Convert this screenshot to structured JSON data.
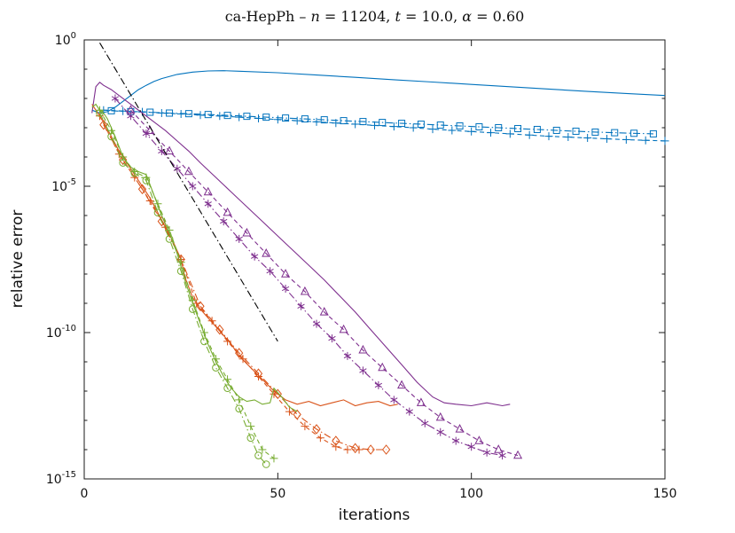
{
  "chart_data": {
    "type": "line",
    "title": "ca-HepPh – n = 11204, t = 10.0, α = 0.60",
    "title_segments": [
      {
        "text": "ca-HepPh – ",
        "italic": false
      },
      {
        "text": "n",
        "italic": true
      },
      {
        "text": " = 11204, ",
        "italic": false
      },
      {
        "text": "t",
        "italic": true
      },
      {
        "text": " = 10.0, ",
        "italic": false
      },
      {
        "text": "α",
        "italic": true
      },
      {
        "text": " = 0.60",
        "italic": false
      }
    ],
    "x_axis": {
      "label": "iterations",
      "range": [
        0,
        150
      ],
      "ticks": [
        0,
        50,
        100,
        150
      ],
      "scale": "linear"
    },
    "y_axis": {
      "label": "relative error",
      "scale": "log",
      "range_exponents": [
        -15,
        0
      ],
      "major_tick_exponents": [
        0,
        -5,
        -10,
        -15
      ],
      "minor_ticks_every_decade": true
    },
    "legend": {
      "shown": false
    },
    "grid": false,
    "colors": {
      "blue": "#0072BD",
      "orange": "#D95319",
      "green": "#77AC30",
      "purple": "#7E2F8E",
      "black": "#000000"
    },
    "series": [
      {
        "name": "blue-solid",
        "color": "#0072BD",
        "line": "solid",
        "marker": "none",
        "x": [
          2,
          4,
          6,
          8,
          10,
          12,
          14,
          16,
          18,
          20,
          24,
          28,
          32,
          36,
          40,
          50,
          60,
          70,
          80,
          90,
          100,
          110,
          120,
          130,
          140,
          150
        ],
        "log10y": [
          -2.4,
          -2.5,
          -2.45,
          -2.3,
          -2.1,
          -1.9,
          -1.7,
          -1.55,
          -1.42,
          -1.32,
          -1.18,
          -1.1,
          -1.06,
          -1.05,
          -1.07,
          -1.12,
          -1.2,
          -1.28,
          -1.36,
          -1.44,
          -1.52,
          -1.6,
          -1.68,
          -1.76,
          -1.83,
          -1.9
        ]
      },
      {
        "name": "blue-dashdot-square",
        "color": "#0072BD",
        "line": "dashdot",
        "marker": "square",
        "x": [
          7,
          12,
          17,
          22,
          27,
          32,
          37,
          42,
          47,
          52,
          57,
          62,
          67,
          72,
          77,
          82,
          87,
          92,
          97,
          102,
          107,
          112,
          117,
          122,
          127,
          132,
          137,
          142,
          147
        ],
        "log10y": [
          -2.42,
          -2.45,
          -2.47,
          -2.5,
          -2.52,
          -2.55,
          -2.58,
          -2.61,
          -2.64,
          -2.67,
          -2.7,
          -2.73,
          -2.76,
          -2.79,
          -2.82,
          -2.85,
          -2.88,
          -2.91,
          -2.94,
          -2.97,
          -3.0,
          -3.03,
          -3.06,
          -3.09,
          -3.12,
          -3.15,
          -3.17,
          -3.19,
          -3.21
        ]
      },
      {
        "name": "blue-dashed-plus",
        "color": "#0072BD",
        "line": "dashed",
        "marker": "plus",
        "x": [
          5,
          10,
          15,
          20,
          25,
          30,
          35,
          40,
          45,
          50,
          55,
          60,
          65,
          70,
          75,
          80,
          85,
          90,
          95,
          100,
          105,
          110,
          115,
          120,
          125,
          130,
          135,
          140,
          145,
          150
        ],
        "log10y": [
          -2.4,
          -2.43,
          -2.46,
          -2.5,
          -2.53,
          -2.57,
          -2.6,
          -2.64,
          -2.68,
          -2.72,
          -2.76,
          -2.8,
          -2.84,
          -2.88,
          -2.92,
          -2.96,
          -3.0,
          -3.05,
          -3.09,
          -3.13,
          -3.17,
          -3.21,
          -3.25,
          -3.29,
          -3.32,
          -3.35,
          -3.38,
          -3.41,
          -3.43,
          -3.45
        ]
      },
      {
        "name": "purple-solid",
        "color": "#7E2F8E",
        "line": "solid",
        "marker": "none",
        "x": [
          2,
          3,
          4,
          5,
          7,
          9,
          12,
          15,
          18,
          21,
          24,
          27,
          30,
          34,
          38,
          42,
          46,
          50,
          54,
          58,
          62,
          66,
          70,
          74,
          78,
          82,
          86,
          90,
          93,
          96,
          100,
          104,
          108,
          110
        ],
        "log10y": [
          -2.5,
          -1.6,
          -1.45,
          -1.55,
          -1.7,
          -1.9,
          -2.2,
          -2.5,
          -2.8,
          -3.1,
          -3.45,
          -3.8,
          -4.2,
          -4.7,
          -5.2,
          -5.7,
          -6.2,
          -6.7,
          -7.2,
          -7.7,
          -8.2,
          -8.75,
          -9.3,
          -9.9,
          -10.5,
          -11.1,
          -11.7,
          -12.2,
          -12.4,
          -12.45,
          -12.5,
          -12.4,
          -12.5,
          -12.45
        ]
      },
      {
        "name": "purple-dashdot-asterisk",
        "color": "#7E2F8E",
        "line": "dashdot",
        "marker": "asterisk",
        "x": [
          8,
          12,
          16,
          20,
          24,
          28,
          32,
          36,
          40,
          44,
          48,
          52,
          56,
          60,
          64,
          68,
          72,
          76,
          80,
          84,
          88,
          92,
          96,
          100,
          104,
          108
        ],
        "log10y": [
          -2.0,
          -2.6,
          -3.2,
          -3.8,
          -4.4,
          -5.0,
          -5.6,
          -6.2,
          -6.8,
          -7.4,
          -7.9,
          -8.5,
          -9.1,
          -9.7,
          -10.2,
          -10.8,
          -11.3,
          -11.8,
          -12.3,
          -12.7,
          -13.1,
          -13.4,
          -13.7,
          -13.9,
          -14.1,
          -14.2
        ]
      },
      {
        "name": "purple-dashed-triangle",
        "color": "#7E2F8E",
        "line": "dashed",
        "marker": "triangle",
        "x": [
          12,
          17,
          22,
          27,
          32,
          37,
          42,
          47,
          52,
          57,
          62,
          67,
          72,
          77,
          82,
          87,
          92,
          97,
          102,
          107,
          112
        ],
        "log10y": [
          -2.4,
          -3.1,
          -3.8,
          -4.5,
          -5.2,
          -5.9,
          -6.6,
          -7.3,
          -8.0,
          -8.6,
          -9.3,
          -9.9,
          -10.6,
          -11.2,
          -11.8,
          -12.4,
          -12.9,
          -13.3,
          -13.7,
          -14.0,
          -14.2
        ]
      },
      {
        "name": "orange-solid",
        "color": "#D95319",
        "line": "solid",
        "marker": "none",
        "x": [
          2,
          3,
          5,
          7,
          9,
          11,
          13,
          15,
          17,
          19,
          21,
          23,
          25,
          26,
          28,
          30,
          32,
          34,
          36,
          38,
          40,
          43,
          46,
          49,
          52,
          55,
          58,
          61,
          64,
          67,
          70,
          73,
          76,
          79,
          81
        ],
        "log10y": [
          -2.2,
          -2.4,
          -2.8,
          -3.3,
          -3.8,
          -4.2,
          -4.6,
          -5.0,
          -5.4,
          -5.9,
          -6.4,
          -6.9,
          -7.5,
          -8.1,
          -8.8,
          -9.2,
          -9.5,
          -9.8,
          -10.1,
          -10.4,
          -10.8,
          -11.2,
          -11.6,
          -12.0,
          -12.3,
          -12.45,
          -12.35,
          -12.5,
          -12.4,
          -12.3,
          -12.5,
          -12.4,
          -12.35,
          -12.5,
          -12.45
        ]
      },
      {
        "name": "orange-dashdot-diamond",
        "color": "#D95319",
        "line": "dashdot",
        "marker": "diamond",
        "x": [
          5,
          10,
          15,
          20,
          25,
          30,
          35,
          40,
          45,
          50,
          55,
          60,
          65,
          70,
          74,
          78
        ],
        "log10y": [
          -2.9,
          -4.1,
          -5.1,
          -6.2,
          -7.5,
          -9.1,
          -9.9,
          -10.7,
          -11.4,
          -12.1,
          -12.8,
          -13.3,
          -13.7,
          -13.95,
          -14.0,
          -14.0
        ]
      },
      {
        "name": "orange-dashed-plus",
        "color": "#D95319",
        "line": "dashed",
        "marker": "plus",
        "x": [
          4,
          9,
          13,
          17,
          21,
          25,
          29,
          33,
          37,
          41,
          45,
          49,
          53,
          57,
          61,
          65,
          68,
          71
        ],
        "log10y": [
          -2.6,
          -3.9,
          -4.7,
          -5.5,
          -6.4,
          -7.5,
          -9.0,
          -9.6,
          -10.3,
          -10.9,
          -11.5,
          -12.1,
          -12.7,
          -13.2,
          -13.6,
          -13.9,
          -14.0,
          -14.0
        ]
      },
      {
        "name": "green-solid",
        "color": "#77AC30",
        "line": "solid",
        "marker": "none",
        "x": [
          2,
          3,
          4,
          5,
          6,
          8,
          10,
          12,
          14,
          16,
          18,
          20,
          22,
          24,
          26,
          28,
          30,
          32,
          34,
          36,
          38,
          40,
          42,
          44,
          46,
          48,
          49,
          51,
          53,
          55
        ],
        "log10y": [
          -2.3,
          -2.2,
          -2.4,
          -2.5,
          -2.7,
          -3.3,
          -4.0,
          -4.35,
          -4.5,
          -4.6,
          -5.3,
          -6.0,
          -6.6,
          -7.3,
          -8.2,
          -9.0,
          -9.7,
          -10.4,
          -11.0,
          -11.5,
          -11.9,
          -12.2,
          -12.35,
          -12.3,
          -12.45,
          -12.4,
          -11.9,
          -12.2,
          -12.55,
          -12.7
        ]
      },
      {
        "name": "green-dashdot-circle",
        "color": "#77AC30",
        "line": "dashdot",
        "marker": "circle",
        "x": [
          4,
          7,
          10,
          13,
          16,
          19,
          22,
          25,
          28,
          31,
          34,
          37,
          40,
          43,
          45,
          47
        ],
        "log10y": [
          -2.5,
          -3.3,
          -4.2,
          -4.55,
          -4.8,
          -5.9,
          -6.8,
          -7.9,
          -9.2,
          -10.3,
          -11.2,
          -11.9,
          -12.6,
          -13.6,
          -14.2,
          -14.5
        ]
      },
      {
        "name": "green-dashed-plus",
        "color": "#77AC30",
        "line": "dashed",
        "marker": "plus",
        "x": [
          4,
          7,
          10,
          13,
          16,
          19,
          22,
          25,
          28,
          31,
          34,
          37,
          40,
          43,
          46,
          49
        ],
        "log10y": [
          -2.4,
          -3.1,
          -4.0,
          -4.5,
          -4.7,
          -5.6,
          -6.5,
          -7.6,
          -8.9,
          -10.0,
          -10.9,
          -11.6,
          -12.3,
          -13.2,
          -14.0,
          -14.3
        ]
      },
      {
        "name": "reference-slope",
        "color": "#000000",
        "line": "dashdot",
        "marker": "none",
        "x": [
          4,
          50
        ],
        "log10y": [
          -0.1,
          -10.3
        ]
      }
    ]
  }
}
